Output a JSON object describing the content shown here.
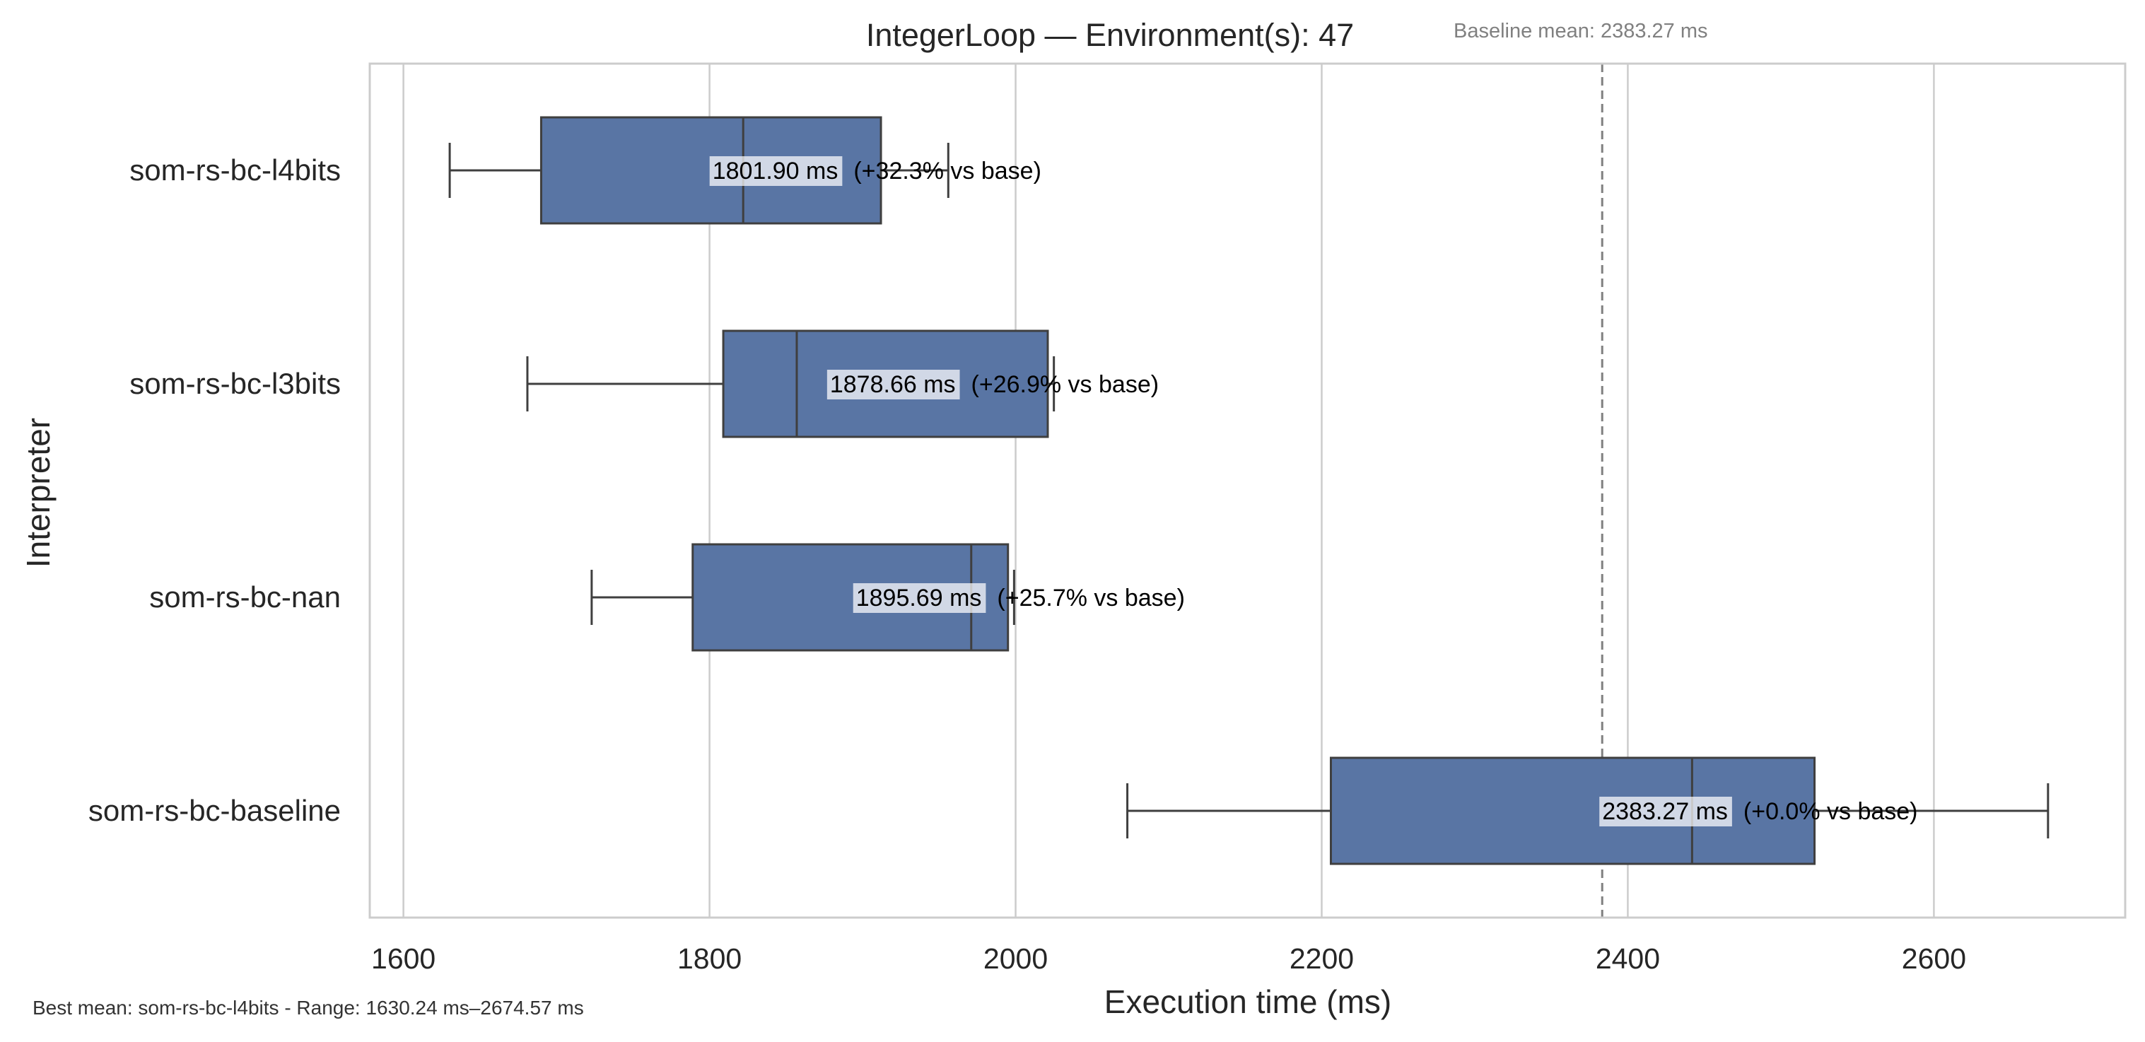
{
  "chart_data": {
    "type": "box",
    "orientation": "horizontal",
    "title": "IntegerLoop — Environment(s): 47",
    "xlabel": "Execution time (ms)",
    "ylabel": "Interpreter",
    "xlim": [
      1578,
      2725
    ],
    "x_ticks": [
      1600,
      1800,
      2000,
      2200,
      2400,
      2600
    ],
    "x_tick_labels": [
      "1600",
      "1800",
      "2000",
      "2200",
      "2400",
      "2600"
    ],
    "grid": "vertical",
    "categories": [
      "som-rs-bc-l4bits",
      "som-rs-bc-l3bits",
      "som-rs-bc-nan",
      "som-rs-bc-baseline"
    ],
    "boxes": [
      {
        "name": "som-rs-bc-l4bits",
        "whisker_low": 1630.24,
        "q1": 1690,
        "median": 1822,
        "q3": 1912,
        "whisker_high": 1956,
        "mean": 1801.9
      },
      {
        "name": "som-rs-bc-l3bits",
        "whisker_low": 1681,
        "q1": 1809,
        "median": 1857,
        "q3": 2021,
        "whisker_high": 2025,
        "mean": 1878.66
      },
      {
        "name": "som-rs-bc-nan",
        "whisker_low": 1723,
        "q1": 1789,
        "median": 1971,
        "q3": 1995,
        "whisker_high": 1999,
        "mean": 1895.69
      },
      {
        "name": "som-rs-bc-baseline",
        "whisker_low": 2073,
        "q1": 2206,
        "median": 2442,
        "q3": 2522,
        "whisker_high": 2674.57,
        "mean": 2383.27
      }
    ],
    "annotations": [
      {
        "value": "1801.90 ms",
        "rest": "(+32.3% vs base)"
      },
      {
        "value": "1878.66 ms",
        "rest": "(+26.9% vs base)"
      },
      {
        "value": "1895.69 ms",
        "rest": "(+25.7% vs base)"
      },
      {
        "value": "2383.27 ms",
        "rest": "(+0.0% vs base)"
      }
    ],
    "baseline_mean": 2383.27,
    "baseline_label": "Baseline mean: 2383.27 ms",
    "footer": "Best mean: som-rs-bc-l4bits - Range: 1630.24 ms–2674.57 ms",
    "colors": {
      "box_fill": "#5975a4",
      "box_edge": "#3f3f3f",
      "grid": "#cccccc",
      "frame": "#cccccc",
      "baseline_line": "#808080",
      "annotation_bg": "#ffffff"
    }
  }
}
